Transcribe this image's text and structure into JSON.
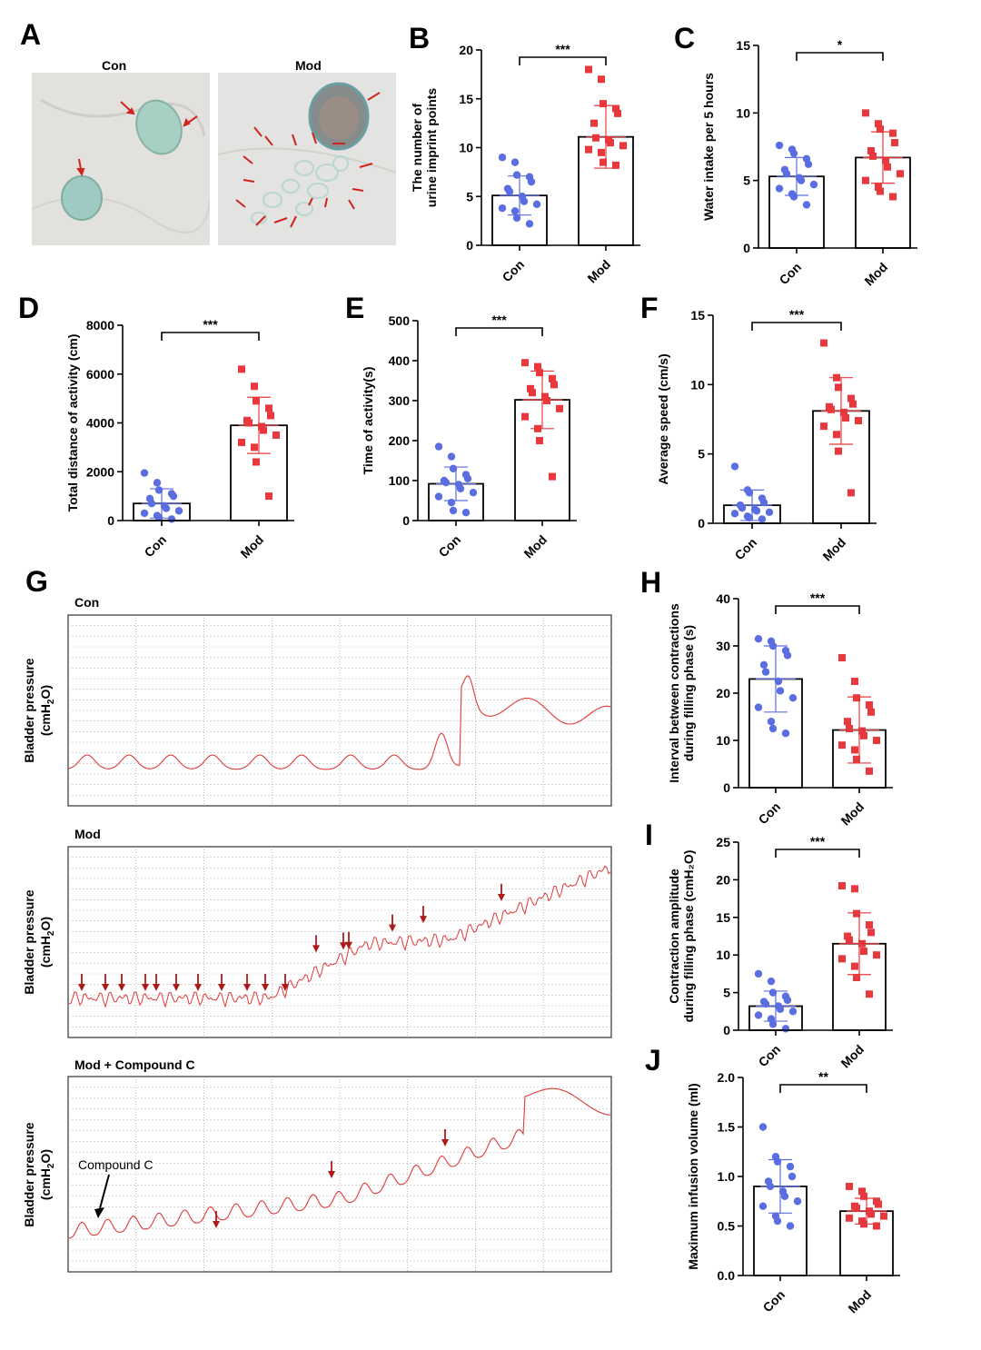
{
  "panels": {
    "A": {
      "letter": "A",
      "photo_labels": [
        "Con",
        "Mod"
      ]
    },
    "G": {
      "letter": "G",
      "trace_titles": [
        "Con",
        "Mod",
        "Mod + Compound C"
      ],
      "ylabel_line1": "Bladder pressure",
      "ylabel_unit": "(cmH",
      "ylabel_sub": "2",
      "ylabel_close": "O)",
      "annotation": "Compound C"
    }
  },
  "colors": {
    "con": "#5b6ee1",
    "mod": "#e8383d",
    "trace": "#e03a3a",
    "arrow": "#b01818"
  },
  "chart_data": [
    {
      "id": "B",
      "letter": "B",
      "type": "bar",
      "categories": [
        "Con",
        "Mod"
      ],
      "ylabel": [
        "The number of",
        "urine imprint points"
      ],
      "ylim": [
        0,
        20
      ],
      "yticks": [
        0,
        5,
        10,
        15,
        20
      ],
      "means": [
        5.1,
        11.1
      ],
      "sds": [
        2.0,
        3.2
      ],
      "points": [
        [
          9,
          8.5,
          7.2,
          7.0,
          6.5,
          5.8,
          5.5,
          5.0,
          4.5,
          4.2,
          3.8,
          3.5,
          2.8,
          2.2
        ],
        [
          18,
          17,
          14.5,
          14,
          13.5,
          12.5,
          11,
          10.8,
          10.5,
          10.2,
          9.8,
          9.5,
          8.5,
          8.2
        ]
      ],
      "significance": "***"
    },
    {
      "id": "C",
      "letter": "C",
      "type": "bar",
      "categories": [
        "Con",
        "Mod"
      ],
      "ylabel": [
        "Water intake per 5 hours"
      ],
      "ylim": [
        0,
        15
      ],
      "yticks": [
        0,
        5,
        10,
        15
      ],
      "means": [
        5.3,
        6.7
      ],
      "sds": [
        1.4,
        1.9
      ],
      "points": [
        [
          7.6,
          7.3,
          7.0,
          6.6,
          6.2,
          5.8,
          5.5,
          5.2,
          5.0,
          4.7,
          4.4,
          4.0,
          3.8,
          3.2
        ],
        [
          10.0,
          9.2,
          8.8,
          8.5,
          7.8,
          7.2,
          6.8,
          6.5,
          6.0,
          5.5,
          5.0,
          4.5,
          4.2,
          3.8
        ]
      ],
      "significance": "*"
    },
    {
      "id": "D",
      "letter": "D",
      "type": "bar",
      "categories": [
        "Con",
        "Mod"
      ],
      "ylabel": [
        "Total distance of activity (cm)"
      ],
      "ylim": [
        0,
        8000
      ],
      "yticks": [
        0,
        2000,
        4000,
        6000,
        8000
      ],
      "means": [
        700,
        3900
      ],
      "sds": [
        600,
        1150
      ],
      "points": [
        [
          1950,
          1550,
          1250,
          1100,
          1000,
          900,
          700,
          600,
          500,
          400,
          300,
          200,
          120,
          60
        ],
        [
          6200,
          5500,
          4900,
          4600,
          4300,
          4100,
          4000,
          3850,
          3700,
          3500,
          3200,
          3000,
          2400,
          1000
        ]
      ],
      "significance": "***"
    },
    {
      "id": "E",
      "letter": "E",
      "type": "bar",
      "categories": [
        "Con",
        "Mod"
      ],
      "ylabel": [
        "Time of activity(s)"
      ],
      "ylim": [
        0,
        500
      ],
      "yticks": [
        0,
        100,
        200,
        300,
        400,
        500
      ],
      "means": [
        92,
        302
      ],
      "sds": [
        42,
        72
      ],
      "points": [
        [
          185,
          160,
          130,
          115,
          105,
          100,
          95,
          90,
          80,
          70,
          60,
          45,
          25,
          20
        ],
        [
          395,
          385,
          370,
          355,
          340,
          330,
          320,
          310,
          300,
          280,
          260,
          230,
          200,
          110
        ]
      ],
      "significance": "***"
    },
    {
      "id": "F",
      "letter": "F",
      "type": "bar",
      "categories": [
        "Con",
        "Mod"
      ],
      "ylabel": [
        "Average speed (cm/s)"
      ],
      "ylim": [
        0,
        15
      ],
      "yticks": [
        0,
        5,
        10,
        15
      ],
      "means": [
        1.3,
        8.1
      ],
      "sds": [
        1.1,
        2.4
      ],
      "points": [
        [
          4.1,
          2.4,
          2.2,
          1.8,
          1.5,
          1.3,
          1.1,
          1.0,
          0.9,
          0.8,
          0.7,
          0.5,
          0.4,
          0.3
        ],
        [
          13.0,
          10.5,
          9.8,
          9.0,
          8.6,
          8.4,
          8.2,
          8.0,
          7.6,
          7.4,
          7.0,
          6.4,
          5.2,
          2.2
        ]
      ],
      "significance": "***"
    },
    {
      "id": "H",
      "letter": "H",
      "type": "bar",
      "categories": [
        "Con",
        "Mod"
      ],
      "ylabel": [
        "Interval between contractions",
        "during filling phase (s)"
      ],
      "ylim": [
        0,
        40
      ],
      "yticks": [
        0,
        10,
        20,
        30,
        40
      ],
      "means": [
        23.0,
        12.2
      ],
      "sds": [
        7.0,
        7.0
      ],
      "points": [
        [
          31.5,
          31.0,
          30.0,
          29.0,
          28.0,
          26.0,
          24.5,
          22.5,
          20.5,
          19.0,
          17.0,
          14.0,
          12.5,
          11.5
        ],
        [
          27.5,
          22.5,
          19.0,
          17.5,
          16.0,
          14.0,
          12.5,
          12.0,
          11.0,
          10.0,
          9.0,
          8.0,
          6.0,
          3.5
        ]
      ],
      "significance": "***"
    },
    {
      "id": "I",
      "letter": "I",
      "type": "bar",
      "categories": [
        "Con",
        "Mod"
      ],
      "ylabel": [
        "Contraction amplitude",
        "during filling phase (cmH₂O)"
      ],
      "ylim": [
        0,
        25
      ],
      "yticks": [
        0,
        5,
        10,
        15,
        20,
        25
      ],
      "means": [
        3.2,
        11.5
      ],
      "sds": [
        2.0,
        4.1
      ],
      "points": [
        [
          7.5,
          6.5,
          5.0,
          4.5,
          4.0,
          3.8,
          3.5,
          3.2,
          2.8,
          2.5,
          2.0,
          1.5,
          0.8,
          0.2
        ],
        [
          19.2,
          18.8,
          15.5,
          14.0,
          13.0,
          12.5,
          12.0,
          11.5,
          10.5,
          10.0,
          9.5,
          8.5,
          7.0,
          4.8
        ]
      ],
      "significance": "***"
    },
    {
      "id": "J",
      "letter": "J",
      "type": "bar",
      "categories": [
        "Con",
        "Mod"
      ],
      "ylabel": [
        "Maximum infusion volume (ml)"
      ],
      "ylim": [
        0,
        2.0
      ],
      "yticks": [
        0.0,
        0.5,
        1.0,
        1.5,
        2.0
      ],
      "tickDecimals": 1,
      "means": [
        0.9,
        0.65
      ],
      "sds": [
        0.27,
        0.13
      ],
      "points": [
        [
          1.5,
          1.2,
          1.15,
          1.1,
          1.0,
          0.95,
          0.9,
          0.85,
          0.8,
          0.75,
          0.7,
          0.6,
          0.55,
          0.5
        ],
        [
          0.9,
          0.85,
          0.8,
          0.75,
          0.72,
          0.7,
          0.68,
          0.65,
          0.62,
          0.6,
          0.58,
          0.55,
          0.52,
          0.5
        ]
      ],
      "significance": "**"
    }
  ]
}
